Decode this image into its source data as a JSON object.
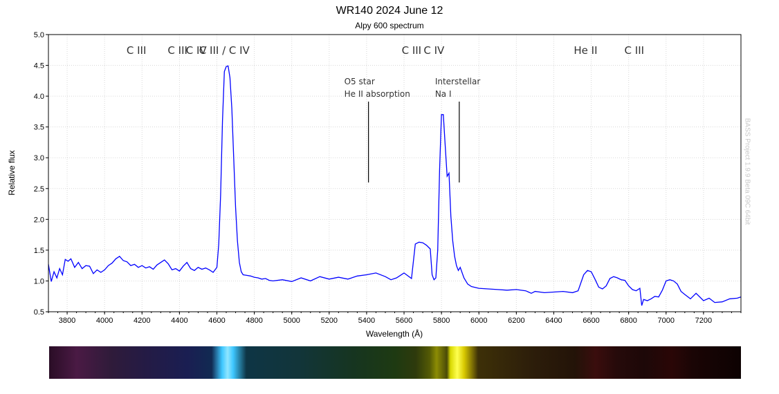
{
  "chart_data": {
    "type": "line",
    "title": "WR140 2024 June 12",
    "subtitle": "Alpy 600 spectrum",
    "xlabel": "Wavelength (Å)",
    "ylabel": "Relative flux",
    "xlim": [
      3700,
      7400
    ],
    "ylim": [
      0.5,
      5.0
    ],
    "xticks": [
      3800,
      4000,
      4200,
      4400,
      4600,
      4800,
      5000,
      5200,
      5400,
      5600,
      5800,
      6000,
      6200,
      6400,
      6600,
      6800,
      7000,
      7200
    ],
    "yticks": [
      "0.5",
      "1.0",
      "1.5",
      "2.0",
      "2.5",
      "3.0",
      "3.5",
      "4.0",
      "4.5",
      "5.0"
    ],
    "grid": true,
    "line_color": "#0000ff",
    "series": [
      {
        "x": [
          3700,
          3715,
          3730,
          3745,
          3760,
          3775,
          3790,
          3805,
          3820,
          3840,
          3860,
          3880,
          3900,
          3920,
          3940,
          3960,
          3980,
          4000,
          4020,
          4040,
          4060,
          4080,
          4100,
          4120,
          4140,
          4160,
          4180,
          4200,
          4220,
          4240,
          4260,
          4280,
          4300,
          4320,
          4340,
          4360,
          4380,
          4400,
          4420,
          4440,
          4460,
          4480,
          4500,
          4520,
          4540,
          4560,
          4580,
          4600,
          4610,
          4620,
          4630,
          4640,
          4650,
          4660,
          4670,
          4680,
          4690,
          4700,
          4710,
          4720,
          4730,
          4740,
          4760,
          4780,
          4800,
          4820,
          4840,
          4860,
          4880,
          4900,
          4950,
          5000,
          5050,
          5100,
          5150,
          5200,
          5250,
          5300,
          5350,
          5400,
          5450,
          5500,
          5530,
          5560,
          5600,
          5640,
          5660,
          5680,
          5700,
          5720,
          5740,
          5750,
          5760,
          5770,
          5780,
          5790,
          5800,
          5810,
          5820,
          5830,
          5840,
          5850,
          5860,
          5870,
          5880,
          5890,
          5900,
          5920,
          5940,
          5960,
          6000,
          6050,
          6100,
          6150,
          6200,
          6250,
          6280,
          6300,
          6350,
          6400,
          6450,
          6500,
          6530,
          6560,
          6580,
          6600,
          6620,
          6640,
          6660,
          6680,
          6700,
          6720,
          6740,
          6760,
          6780,
          6800,
          6820,
          6840,
          6860,
          6870,
          6880,
          6900,
          6920,
          6940,
          6960,
          6980,
          7000,
          7020,
          7040,
          7060,
          7080,
          7100,
          7130,
          7160,
          7180,
          7200,
          7230,
          7260,
          7300,
          7340,
          7380,
          7400
        ],
        "y": [
          1.27,
          0.99,
          1.15,
          1.05,
          1.2,
          1.1,
          1.35,
          1.32,
          1.36,
          1.22,
          1.3,
          1.2,
          1.25,
          1.24,
          1.12,
          1.18,
          1.14,
          1.18,
          1.25,
          1.29,
          1.36,
          1.4,
          1.33,
          1.31,
          1.25,
          1.27,
          1.22,
          1.25,
          1.21,
          1.23,
          1.19,
          1.26,
          1.3,
          1.34,
          1.28,
          1.18,
          1.2,
          1.16,
          1.24,
          1.3,
          1.2,
          1.17,
          1.22,
          1.19,
          1.21,
          1.18,
          1.14,
          1.22,
          1.6,
          2.4,
          3.6,
          4.4,
          4.48,
          4.49,
          4.3,
          3.8,
          3.0,
          2.2,
          1.65,
          1.3,
          1.15,
          1.1,
          1.09,
          1.08,
          1.06,
          1.05,
          1.03,
          1.04,
          1.01,
          1.0,
          1.02,
          0.99,
          1.05,
          1.0,
          1.07,
          1.03,
          1.06,
          1.03,
          1.08,
          1.1,
          1.13,
          1.07,
          1.02,
          1.05,
          1.13,
          1.04,
          1.6,
          1.63,
          1.62,
          1.58,
          1.52,
          1.1,
          1.02,
          1.05,
          1.5,
          2.8,
          3.7,
          3.7,
          3.2,
          2.7,
          2.75,
          2.05,
          1.65,
          1.4,
          1.25,
          1.17,
          1.22,
          1.05,
          0.95,
          0.91,
          0.88,
          0.87,
          0.86,
          0.85,
          0.86,
          0.84,
          0.8,
          0.83,
          0.81,
          0.82,
          0.83,
          0.81,
          0.84,
          1.1,
          1.17,
          1.15,
          1.03,
          0.9,
          0.87,
          0.92,
          1.04,
          1.07,
          1.05,
          1.02,
          1.01,
          0.92,
          0.86,
          0.84,
          0.88,
          0.6,
          0.7,
          0.68,
          0.71,
          0.75,
          0.74,
          0.85,
          1.0,
          1.02,
          1.0,
          0.95,
          0.83,
          0.78,
          0.71,
          0.8,
          0.74,
          0.68,
          0.72,
          0.65,
          0.66,
          0.71,
          0.72,
          0.74
        ]
      }
    ],
    "annotations": [
      {
        "text": "C III",
        "x": 4170
      },
      {
        "text": "C III",
        "x": 4390
      },
      {
        "text": "C IV",
        "x": 4490
      },
      {
        "text": "C III / C IV",
        "x": 4640
      },
      {
        "text": "C III",
        "x": 5640
      },
      {
        "text": "C IV",
        "x": 5760
      },
      {
        "text": "He II",
        "x": 6570
      },
      {
        "text": "C III",
        "x": 6830
      }
    ],
    "callouts": [
      {
        "line1": "O5 star",
        "line2": "He II absorption",
        "x": 5410
      },
      {
        "line1": "Interstellar",
        "line2": "Na I",
        "x": 5895
      }
    ],
    "watermark": "BASS Project 1.9.9 Beta 09C 64bit"
  }
}
